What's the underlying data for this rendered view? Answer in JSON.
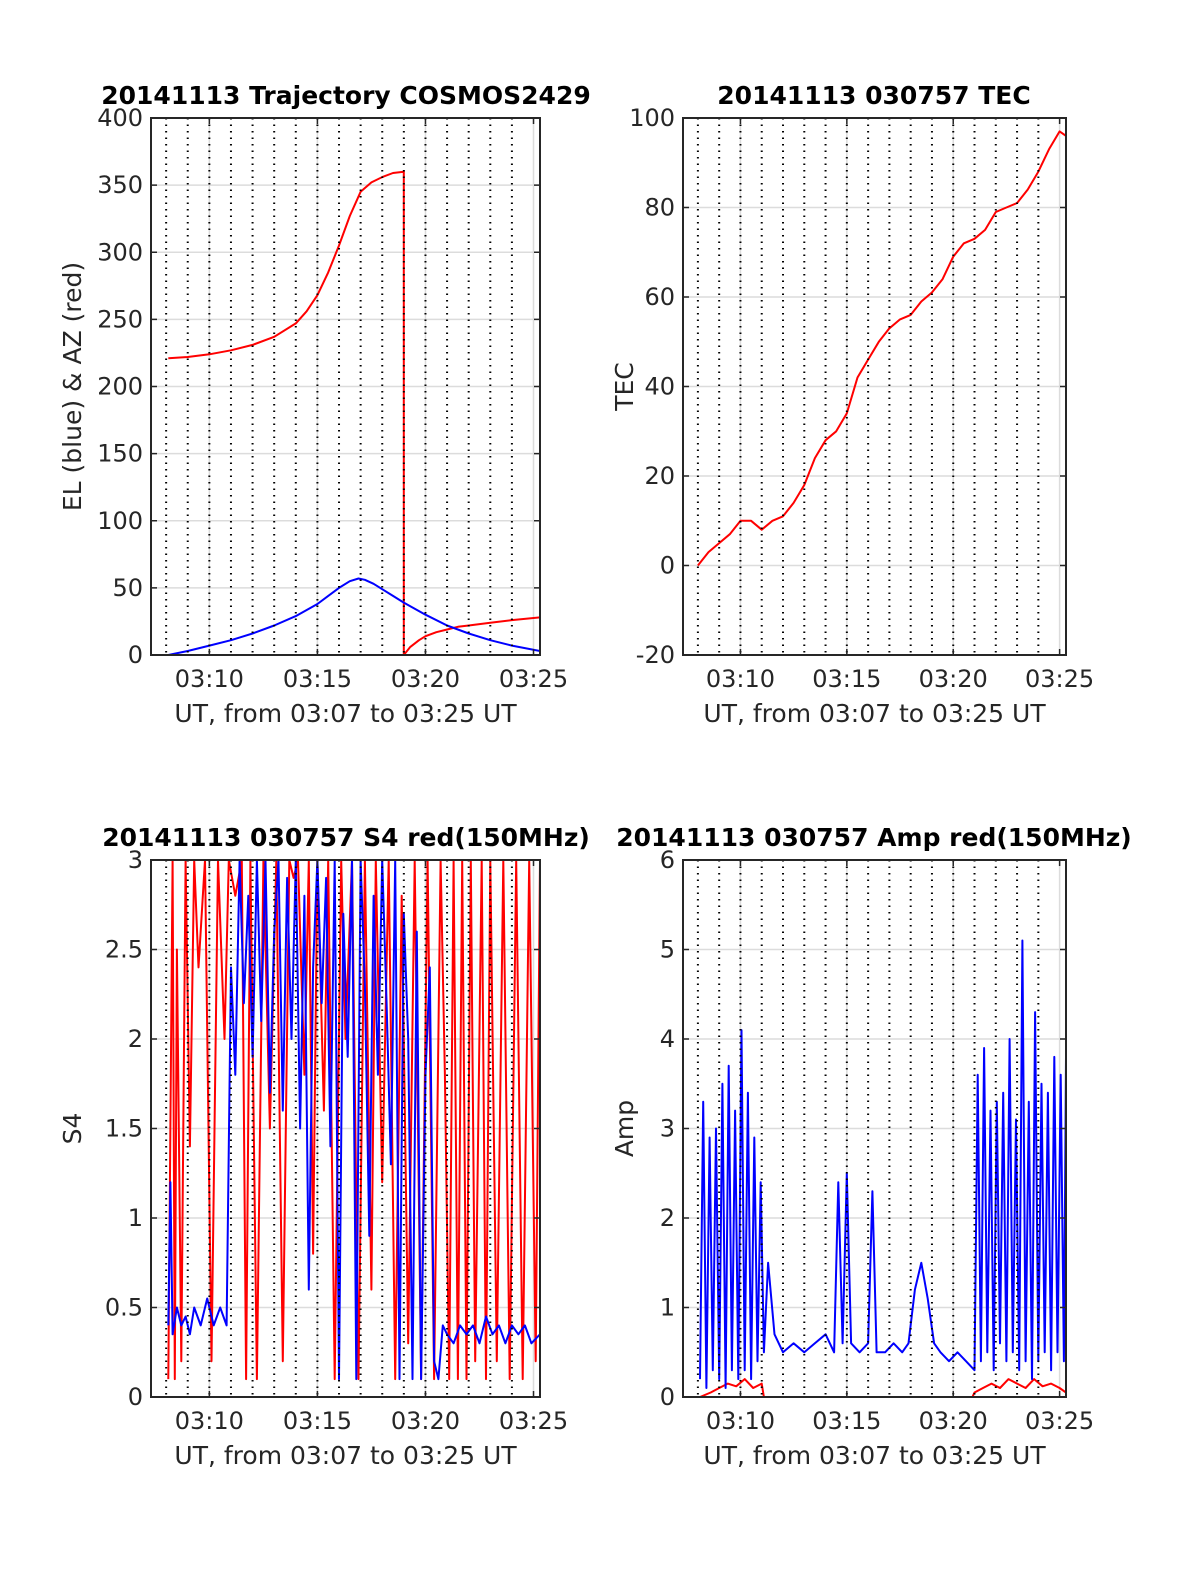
{
  "figure": {
    "vertical_gridline_style": "dotted black",
    "horizontal_gridline_style": "light gray"
  },
  "chart_data": [
    {
      "type": "line",
      "title": "20141113 Trajectory COSMOS2429",
      "xlabel": "UT, from 03:07 to 03:25 UT",
      "ylabel": "EL (blue) & AZ (red)",
      "xlim": [
        7.3,
        25.3
      ],
      "ylim": [
        0,
        400
      ],
      "xticks": [
        10,
        15,
        20,
        25
      ],
      "xtick_labels": [
        "03:10",
        "03:15",
        "03:20",
        "03:25"
      ],
      "yticks": [
        0,
        50,
        100,
        150,
        200,
        250,
        300,
        350,
        400
      ],
      "ytick_labels": [
        "0",
        "50",
        "100",
        "150",
        "200",
        "250",
        "300",
        "350",
        "400"
      ],
      "grid": true,
      "series": [
        {
          "color": "#ff0000",
          "x": [
            8.1,
            9,
            10,
            11,
            12,
            13,
            14,
            14.5,
            15,
            15.5,
            16,
            16.5,
            17,
            17.5,
            18,
            18.5,
            19.0,
            19.0,
            19.3,
            19.7,
            20,
            20.5,
            21,
            21.5,
            22,
            23,
            24,
            25.3
          ],
          "y": [
            221,
            222,
            224,
            227,
            231,
            237,
            247,
            256,
            268,
            285,
            305,
            327,
            345,
            352,
            356,
            359,
            360,
            0,
            6,
            11,
            14,
            17,
            19,
            21,
            22,
            24,
            26,
            28
          ]
        },
        {
          "color": "#0000ff",
          "x": [
            8.1,
            9,
            10,
            11,
            12,
            13,
            14,
            15,
            15.5,
            16,
            16.5,
            16.9,
            17.2,
            17.6,
            18,
            18.5,
            19,
            20,
            21,
            22,
            23,
            24,
            25.3
          ],
          "y": [
            0,
            3,
            7,
            11,
            16,
            22,
            29,
            38,
            44,
            50,
            55,
            57,
            56,
            53,
            49,
            44,
            39,
            30,
            22,
            16,
            11,
            7,
            3
          ]
        }
      ]
    },
    {
      "type": "line",
      "title": "20141113 030757 TEC",
      "xlabel": "UT, from 03:07 to 03:25 UT",
      "ylabel": "TEC",
      "xlim": [
        7.3,
        25.3
      ],
      "ylim": [
        -20,
        100
      ],
      "xticks": [
        10,
        15,
        20,
        25
      ],
      "xtick_labels": [
        "03:10",
        "03:15",
        "03:20",
        "03:25"
      ],
      "yticks": [
        -20,
        0,
        20,
        40,
        60,
        80,
        100
      ],
      "ytick_labels": [
        "-20",
        "0",
        "20",
        "40",
        "60",
        "80",
        "100"
      ],
      "grid": true,
      "series": [
        {
          "color": "#ff0000",
          "x": [
            8.0,
            8.5,
            9.0,
            9.5,
            10.0,
            10.5,
            11.0,
            11.5,
            12.0,
            12.5,
            13.0,
            13.5,
            14.0,
            14.5,
            15.0,
            15.5,
            16.0,
            16.5,
            17.0,
            17.5,
            18.0,
            18.5,
            19.0,
            19.5,
            20.0,
            20.5,
            21.0,
            21.5,
            22.0,
            22.5,
            23.0,
            23.5,
            24.0,
            24.5,
            25.0,
            25.3
          ],
          "y": [
            0,
            3,
            5,
            7,
            10,
            10,
            8,
            10,
            11,
            14,
            18,
            24,
            28,
            30,
            34,
            42,
            46,
            50,
            53,
            55,
            56,
            59,
            61,
            64,
            69,
            72,
            73,
            75,
            79,
            80,
            81,
            84,
            88,
            93,
            97,
            96
          ]
        }
      ]
    },
    {
      "type": "line",
      "title": "20141113 030757 S4 red(150MHz)",
      "xlabel": "UT, from 03:07 to 03:25 UT",
      "ylabel": "S4",
      "xlim": [
        7.3,
        25.3
      ],
      "ylim": [
        0,
        3
      ],
      "xticks": [
        10,
        15,
        20,
        25
      ],
      "xtick_labels": [
        "03:10",
        "03:15",
        "03:20",
        "03:25"
      ],
      "yticks": [
        0,
        0.5,
        1,
        1.5,
        2,
        2.5,
        3
      ],
      "ytick_labels": [
        "0",
        "0.5",
        "1",
        "1.5",
        "2",
        "2.5",
        "3"
      ],
      "grid": true,
      "series": [
        {
          "color": "#ff0000",
          "x": [
            8.1,
            8.3,
            8.4,
            8.5,
            8.7,
            8.9,
            9.1,
            9.3,
            9.5,
            9.8,
            10.1,
            10.4,
            10.7,
            10.9,
            11.2,
            11.5,
            11.7,
            11.9,
            12.2,
            12.5,
            12.8,
            13.1,
            13.4,
            13.7,
            13.9,
            14.1,
            14.4,
            14.6,
            14.8,
            15.0,
            15.3,
            15.5,
            15.8,
            16.1,
            16.3,
            16.6,
            16.9,
            17.2,
            17.5,
            17.7,
            18.0,
            18.3,
            18.6,
            18.9,
            19.2,
            19.5,
            19.8,
            20.1,
            20.4,
            20.7,
            20.9,
            21.1,
            21.3,
            21.5,
            21.7,
            21.9,
            22.1,
            22.3,
            22.6,
            22.8,
            23.0,
            23.3,
            23.6,
            23.9,
            24.2,
            24.5,
            24.8,
            25.1,
            25.3
          ],
          "y": [
            0.1,
            3,
            0.1,
            2.5,
            0.2,
            3,
            1.4,
            3,
            2.4,
            3,
            0.2,
            3,
            2.0,
            3,
            2.8,
            3,
            0.1,
            3,
            0.1,
            3,
            1.5,
            3,
            0.2,
            3,
            2.9,
            3,
            1.8,
            3,
            0.8,
            3,
            1.6,
            3,
            0.1,
            3,
            2.0,
            3,
            0.1,
            3,
            0.6,
            3,
            1.2,
            3,
            0.1,
            2.8,
            0.3,
            3,
            0.1,
            3,
            0.1,
            3,
            1.8,
            0.1,
            3,
            0.1,
            3,
            0.1,
            3,
            0.2,
            3,
            0.1,
            3,
            0.2,
            3,
            0.1,
            3,
            0.1,
            3,
            0.2,
            3
          ]
        },
        {
          "color": "#0000ff",
          "x": [
            8.1,
            8.2,
            8.3,
            8.5,
            8.7,
            8.9,
            9.1,
            9.3,
            9.6,
            9.9,
            10.2,
            10.5,
            10.8,
            11.0,
            11.2,
            11.4,
            11.6,
            11.8,
            12.0,
            12.2,
            12.4,
            12.6,
            12.8,
            13.0,
            13.2,
            13.4,
            13.6,
            13.8,
            14.0,
            14.2,
            14.4,
            14.6,
            14.8,
            15.0,
            15.2,
            15.4,
            15.6,
            15.8,
            16.0,
            16.2,
            16.4,
            16.6,
            16.8,
            17.0,
            17.2,
            17.4,
            17.6,
            17.8,
            18.0,
            18.2,
            18.4,
            18.6,
            18.8,
            19.0,
            19.2,
            19.4,
            19.6,
            19.8,
            20.0,
            20.2,
            20.4,
            20.6,
            20.8,
            21.0,
            21.3,
            21.6,
            21.9,
            22.2,
            22.5,
            22.8,
            23.1,
            23.4,
            23.7,
            24.0,
            24.3,
            24.6,
            24.9,
            25.3
          ],
          "y": [
            0.4,
            1.2,
            0.35,
            0.5,
            0.4,
            0.45,
            0.35,
            0.5,
            0.4,
            0.55,
            0.4,
            0.5,
            0.4,
            2.4,
            1.8,
            3.0,
            2.2,
            2.8,
            1.9,
            3.0,
            2.1,
            3.0,
            1.7,
            2.6,
            3.0,
            1.6,
            2.9,
            2.0,
            3.0,
            1.5,
            2.8,
            0.6,
            2.4,
            3.0,
            2.2,
            2.9,
            1.4,
            3.0,
            0.1,
            2.7,
            1.9,
            3.0,
            0.1,
            3.0,
            2.3,
            0.9,
            2.8,
            1.8,
            3.0,
            2.2,
            1.3,
            3.0,
            0.1,
            2.7,
            2.0,
            0.1,
            2.6,
            0.1,
            1.8,
            2.4,
            0.2,
            0.1,
            0.4,
            0.35,
            0.3,
            0.4,
            0.35,
            0.4,
            0.3,
            0.45,
            0.35,
            0.4,
            0.3,
            0.4,
            0.35,
            0.4,
            0.3,
            0.35
          ]
        }
      ]
    },
    {
      "type": "line",
      "title": "20141113 030757 Amp red(150MHz)",
      "xlabel": "UT, from 03:07 to 03:25 UT",
      "ylabel": "Amp",
      "xlim": [
        7.3,
        25.3
      ],
      "ylim": [
        0,
        6
      ],
      "xticks": [
        10,
        15,
        20,
        25
      ],
      "xtick_labels": [
        "03:10",
        "03:15",
        "03:20",
        "03:25"
      ],
      "yticks": [
        0,
        1,
        2,
        3,
        4,
        5,
        6
      ],
      "ytick_labels": [
        "0",
        "1",
        "2",
        "3",
        "4",
        "5",
        "6"
      ],
      "grid": true,
      "series": [
        {
          "color": "#ff0000",
          "x": [
            8.1,
            8.6,
            9.0,
            9.4,
            9.8,
            10.2,
            10.6,
            11.0,
            11.1,
            20.9,
            21.0,
            21.4,
            21.8,
            22.2,
            22.6,
            23.0,
            23.4,
            23.8,
            24.2,
            24.6,
            25.0,
            25.3
          ],
          "y": [
            0,
            0.05,
            0.1,
            0.15,
            0.12,
            0.2,
            0.1,
            0.15,
            0,
            0,
            0.05,
            0.1,
            0.15,
            0.1,
            0.2,
            0.15,
            0.1,
            0.2,
            0.12,
            0.15,
            0.1,
            0.05
          ]
        },
        {
          "color": "#0000ff",
          "x": [
            8.1,
            8.25,
            8.4,
            8.55,
            8.7,
            8.85,
            9.0,
            9.15,
            9.3,
            9.45,
            9.6,
            9.75,
            9.9,
            10.05,
            10.2,
            10.35,
            10.5,
            10.65,
            10.8,
            10.95,
            11.1,
            11.3,
            11.6,
            12.0,
            12.5,
            13.0,
            13.5,
            14.0,
            14.4,
            14.6,
            14.8,
            15.0,
            15.2,
            15.6,
            16.0,
            16.2,
            16.4,
            16.8,
            17.2,
            17.6,
            17.9,
            18.2,
            18.5,
            18.8,
            19.1,
            19.4,
            19.8,
            20.2,
            20.6,
            21.0,
            21.15,
            21.3,
            21.45,
            21.6,
            21.75,
            21.9,
            22.05,
            22.2,
            22.35,
            22.5,
            22.65,
            22.8,
            22.95,
            23.1,
            23.25,
            23.4,
            23.55,
            23.7,
            23.85,
            24.0,
            24.15,
            24.3,
            24.45,
            24.6,
            24.75,
            24.9,
            25.05,
            25.2,
            25.3
          ],
          "y": [
            0.2,
            3.3,
            0.1,
            2.9,
            0.3,
            3.0,
            0.2,
            3.5,
            0.1,
            3.7,
            0.3,
            3.2,
            0.2,
            4.1,
            0.3,
            3.4,
            0.2,
            2.9,
            0.4,
            2.4,
            0.5,
            1.5,
            0.7,
            0.5,
            0.6,
            0.5,
            0.6,
            0.7,
            0.5,
            2.4,
            0.6,
            2.5,
            0.6,
            0.5,
            0.6,
            2.3,
            0.5,
            0.5,
            0.6,
            0.5,
            0.6,
            1.2,
            1.5,
            1.1,
            0.6,
            0.5,
            0.4,
            0.5,
            0.4,
            0.3,
            3.6,
            0.4,
            3.9,
            0.5,
            3.2,
            0.3,
            3.3,
            0.6,
            3.4,
            0.4,
            4.0,
            0.5,
            3.1,
            0.3,
            5.1,
            0.4,
            3.3,
            0.2,
            4.3,
            0.4,
            3.5,
            0.5,
            3.4,
            0.3,
            3.8,
            0.5,
            3.6,
            0.4,
            3.8
          ]
        }
      ]
    }
  ]
}
